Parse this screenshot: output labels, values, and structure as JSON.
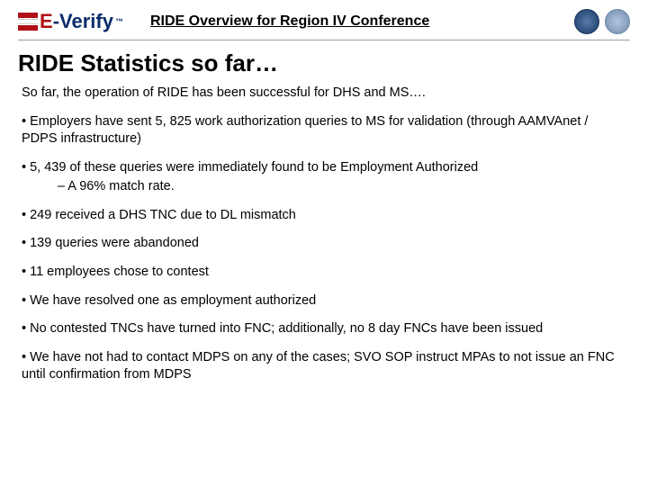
{
  "header": {
    "logo_e": "E",
    "logo_dash": "-",
    "logo_verify": "Verify",
    "tm": "™",
    "title": "RIDE Overview for Region IV Conference"
  },
  "slide": {
    "title": "RIDE Statistics so far…",
    "intro": "So far, the operation of RIDE has been successful for DHS and MS….",
    "bullets": [
      {
        "text": "• Employers have sent 5, 825 work authorization queries to MS for validation (through AAMVAnet / PDPS infrastructure)"
      },
      {
        "text": "• 5, 439 of these queries were immediately found to be Employment Authorized",
        "sub": "–  A 96% match rate."
      },
      {
        "text": "• 249 received a DHS TNC due to DL mismatch"
      },
      {
        "text": "• 139 queries were abandoned"
      },
      {
        "text": "• 11 employees chose to contest"
      },
      {
        "text": "• We have resolved one as employment authorized"
      },
      {
        "text": "• No contested TNCs have turned into FNC; additionally, no 8 day FNCs have been issued"
      },
      {
        "text": "• We have not had to contact MDPS on any of the cases; SVO SOP instruct MPAs to not issue an FNC until confirmation from MDPS"
      }
    ]
  },
  "colors": {
    "brand_red": "#b01116",
    "brand_blue": "#0a2b6b",
    "text": "#000000",
    "rule": "#9aa0a6",
    "background": "#ffffff"
  },
  "typography": {
    "title_fontsize_pt": 20,
    "body_fontsize_pt": 11,
    "font_family": "Arial"
  }
}
